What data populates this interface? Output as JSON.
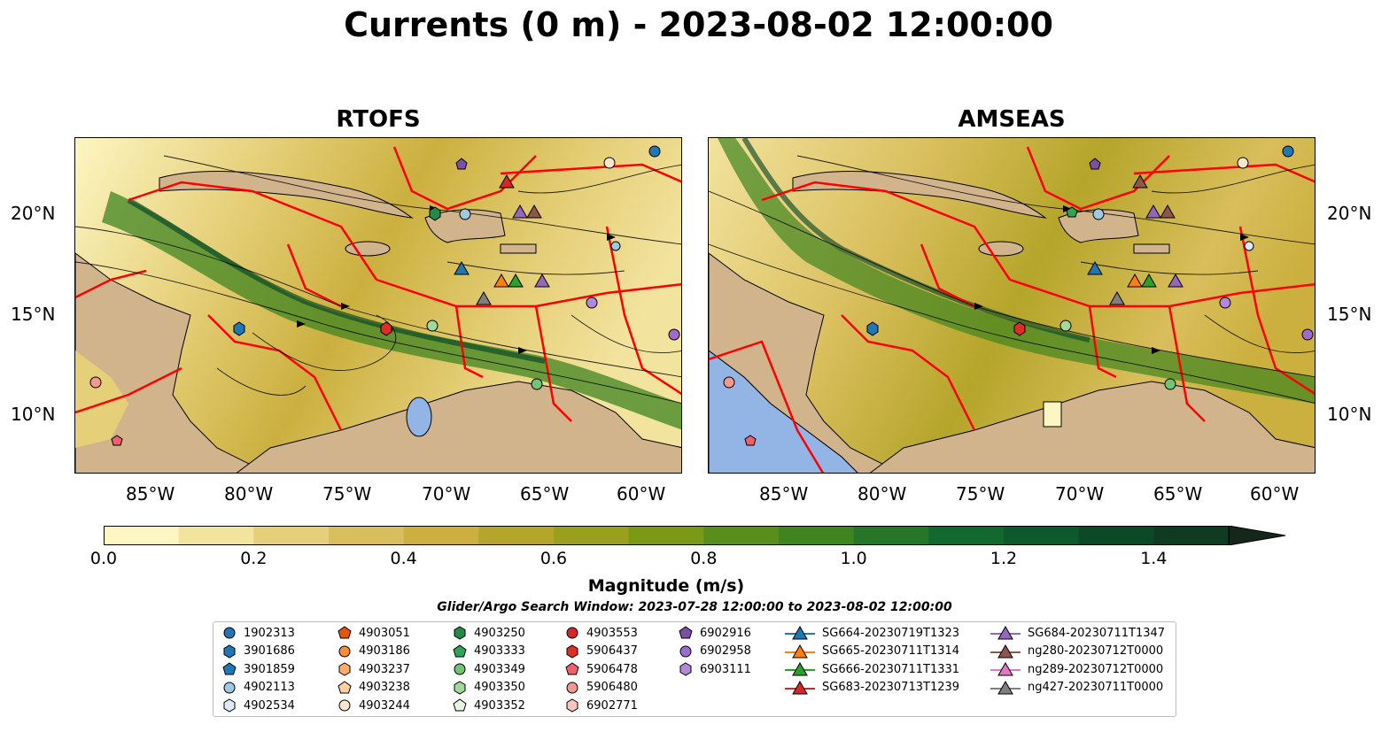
{
  "title": "Currents (0 m) - 2023-08-02 12:00:00",
  "panels": [
    {
      "title": "RTOFS"
    },
    {
      "title": "AMSEAS"
    }
  ],
  "axes": {
    "lon_labels": [
      "85°W",
      "80°W",
      "75°W",
      "70°W",
      "65°W",
      "60°W"
    ],
    "lat_labels": [
      "20°N",
      "15°N",
      "10°N"
    ]
  },
  "colorbar": {
    "label": "Magnitude (m/s)",
    "tick_labels": [
      "0.0",
      "0.2",
      "0.4",
      "0.6",
      "0.8",
      "1.0",
      "1.2",
      "1.4"
    ],
    "colors": [
      "#fdf6c3",
      "#f2e39e",
      "#e5cf78",
      "#d9be5c",
      "#cbb03f",
      "#b5a52a",
      "#98a01c",
      "#7a9a15",
      "#5a8e1a",
      "#3f8420",
      "#257628",
      "#12682e",
      "#0c5a2c",
      "#0c4a27",
      "#0e3b21",
      "#122f1c",
      "#16261a"
    ]
  },
  "search_window": "Glider/Argo Search Window: 2023-07-28 12:00:00 to 2023-08-02 12:00:00",
  "legend": [
    {
      "label": "1902313",
      "color": "#1f77b4",
      "marker": "circle"
    },
    {
      "label": "3901686",
      "color": "#1f77b4",
      "marker": "hexagon"
    },
    {
      "label": "3901859",
      "color": "#1f77b4",
      "marker": "pentagon"
    },
    {
      "label": "4902113",
      "color": "#9ecae1",
      "marker": "circle"
    },
    {
      "label": "4902534",
      "color": "#deebf7",
      "marker": "hexagon"
    },
    {
      "label": "4903051",
      "color": "#e6550d",
      "marker": "pentagon"
    },
    {
      "label": "4903186",
      "color": "#fd8d3c",
      "marker": "circle"
    },
    {
      "label": "4903237",
      "color": "#fdae6b",
      "marker": "hexagon"
    },
    {
      "label": "4903238",
      "color": "#fdd0a2",
      "marker": "pentagon"
    },
    {
      "label": "4903244",
      "color": "#fee6ce",
      "marker": "circle"
    },
    {
      "label": "4903250",
      "color": "#238b45",
      "marker": "hexagon"
    },
    {
      "label": "4903333",
      "color": "#31a354",
      "marker": "pentagon"
    },
    {
      "label": "4903349",
      "color": "#74c476",
      "marker": "circle"
    },
    {
      "label": "4903350",
      "color": "#a1d99b",
      "marker": "hexagon"
    },
    {
      "label": "4903352",
      "color": "#e5f5e0",
      "marker": "pentagon"
    },
    {
      "label": "4903553",
      "color": "#d62728",
      "marker": "circle"
    },
    {
      "label": "5906437",
      "color": "#de2d26",
      "marker": "hexagon"
    },
    {
      "label": "5906478",
      "color": "#f0606a",
      "marker": "pentagon"
    },
    {
      "label": "5906480",
      "color": "#f4998e",
      "marker": "circle"
    },
    {
      "label": "6902771",
      "color": "#fcc5c0",
      "marker": "hexagon"
    },
    {
      "label": "6902916",
      "color": "#7b4fa3",
      "marker": "pentagon"
    },
    {
      "label": "6902958",
      "color": "#9e6bcf",
      "marker": "circle"
    },
    {
      "label": "6903111",
      "color": "#b089d8",
      "marker": "hexagon"
    },
    {
      "label": "SG664-20230719T1323",
      "color": "#1f77b4",
      "marker": "triangle"
    },
    {
      "label": "SG665-20230711T1314",
      "color": "#ff7f0e",
      "marker": "triangle"
    },
    {
      "label": "SG666-20230711T1331",
      "color": "#2ca02c",
      "marker": "triangle"
    },
    {
      "label": "SG683-20230713T1239",
      "color": "#d62728",
      "marker": "triangle"
    },
    {
      "label": "SG684-20230711T1347",
      "color": "#9467bd",
      "marker": "triangle"
    },
    {
      "label": "ng280-20230712T0000",
      "color": "#8c564b",
      "marker": "triangle"
    },
    {
      "label": "ng289-20230712T0000",
      "color": "#e377c2",
      "marker": "triangle"
    },
    {
      "label": "ng427-20230711T0000",
      "color": "#7f7f7f",
      "marker": "triangle"
    }
  ],
  "map_colors": {
    "land": "#d2b48c",
    "water_low": "#fdf6c3",
    "water_mid": "#d9be5c",
    "water_high": "#3f8420",
    "water_max": "#0c4a27",
    "eez_lines": "#ff0000",
    "lakes": "#93b5e6"
  }
}
